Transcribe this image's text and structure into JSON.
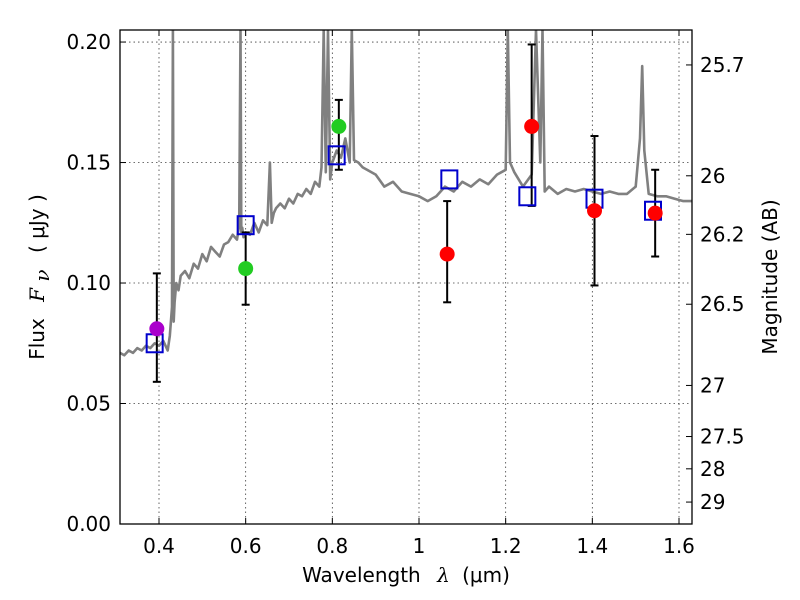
{
  "chart_data": {
    "type": "scatter",
    "title": "",
    "xlabel": "Wavelength",
    "xlabel_symbol": "λ",
    "xlabel_unit": "(μm)",
    "ylabel": "Flux",
    "ylabel_symbol": "F",
    "ylabel_subscript": "ν",
    "ylabel_unit": "( μJy )",
    "y2label": "Magnitude (AB)",
    "xlim": [
      0.31,
      1.63
    ],
    "ylim": [
      0.0,
      0.205
    ],
    "grid": true,
    "x_ticks": [
      {
        "value": 0.4,
        "label": "0.4"
      },
      {
        "value": 0.6,
        "label": "0.6"
      },
      {
        "value": 0.8,
        "label": "0.8"
      },
      {
        "value": 1.0,
        "label": "1"
      },
      {
        "value": 1.2,
        "label": "1.2"
      },
      {
        "value": 1.4,
        "label": "1.4"
      },
      {
        "value": 1.6,
        "label": "1.6"
      }
    ],
    "y_ticks": [
      {
        "value": 0.0,
        "label": "0.00"
      },
      {
        "value": 0.05,
        "label": "0.05"
      },
      {
        "value": 0.1,
        "label": "0.10"
      },
      {
        "value": 0.15,
        "label": "0.15"
      },
      {
        "value": 0.2,
        "label": "0.20"
      }
    ],
    "y2_ticks": [
      {
        "label": "25.7",
        "flux": 0.1905
      },
      {
        "label": "26",
        "flux": 0.1445
      },
      {
        "label": "26.2",
        "flux": 0.1202
      },
      {
        "label": "26.5",
        "flux": 0.0912
      },
      {
        "label": "27",
        "flux": 0.0575
      },
      {
        "label": "27.5",
        "flux": 0.0363
      },
      {
        "label": "28",
        "flux": 0.0229
      },
      {
        "label": "29",
        "flux": 0.0091
      }
    ],
    "series": [
      {
        "name": "model-sed",
        "kind": "line",
        "color": "#808080",
        "x": [
          0.31,
          0.32,
          0.33,
          0.34,
          0.35,
          0.36,
          0.37,
          0.38,
          0.39,
          0.4,
          0.41,
          0.42,
          0.425,
          0.43,
          0.432,
          0.434,
          0.436,
          0.44,
          0.445,
          0.45,
          0.46,
          0.47,
          0.48,
          0.49,
          0.5,
          0.51,
          0.52,
          0.53,
          0.54,
          0.55,
          0.56,
          0.57,
          0.58,
          0.585,
          0.588,
          0.59,
          0.592,
          0.595,
          0.6,
          0.61,
          0.62,
          0.63,
          0.64,
          0.65,
          0.656,
          0.66,
          0.665,
          0.67,
          0.68,
          0.69,
          0.7,
          0.71,
          0.72,
          0.73,
          0.74,
          0.75,
          0.76,
          0.77,
          0.775,
          0.78,
          0.785,
          0.79,
          0.795,
          0.8,
          0.81,
          0.82,
          0.83,
          0.84,
          0.845,
          0.85,
          0.86,
          0.87,
          0.88,
          0.9,
          0.92,
          0.94,
          0.96,
          0.98,
          1.0,
          1.02,
          1.04,
          1.06,
          1.08,
          1.1,
          1.12,
          1.14,
          1.16,
          1.18,
          1.2,
          1.205,
          1.21,
          1.215,
          1.22,
          1.24,
          1.26,
          1.27,
          1.28,
          1.285,
          1.29,
          1.3,
          1.32,
          1.34,
          1.36,
          1.38,
          1.4,
          1.42,
          1.44,
          1.46,
          1.48,
          1.5,
          1.51,
          1.515,
          1.52,
          1.53,
          1.55,
          1.57,
          1.59,
          1.61,
          1.63
        ],
        "y": [
          0.071,
          0.07,
          0.072,
          0.071,
          0.073,
          0.072,
          0.074,
          0.073,
          0.075,
          0.074,
          0.076,
          0.072,
          0.078,
          0.09,
          0.205,
          0.084,
          0.092,
          0.1,
          0.097,
          0.103,
          0.105,
          0.102,
          0.108,
          0.106,
          0.112,
          0.109,
          0.115,
          0.113,
          0.111,
          0.116,
          0.117,
          0.12,
          0.118,
          0.124,
          0.205,
          0.121,
          0.123,
          0.119,
          0.121,
          0.12,
          0.125,
          0.121,
          0.126,
          0.124,
          0.15,
          0.125,
          0.129,
          0.131,
          0.133,
          0.131,
          0.135,
          0.133,
          0.137,
          0.136,
          0.139,
          0.137,
          0.142,
          0.14,
          0.148,
          0.205,
          0.146,
          0.205,
          0.143,
          0.15,
          0.155,
          0.152,
          0.16,
          0.15,
          0.205,
          0.151,
          0.15,
          0.148,
          0.147,
          0.145,
          0.14,
          0.142,
          0.138,
          0.137,
          0.136,
          0.134,
          0.136,
          0.14,
          0.138,
          0.142,
          0.14,
          0.143,
          0.141,
          0.145,
          0.147,
          0.205,
          0.15,
          0.148,
          0.146,
          0.14,
          0.145,
          0.205,
          0.15,
          0.205,
          0.138,
          0.14,
          0.137,
          0.139,
          0.138,
          0.139,
          0.138,
          0.137,
          0.138,
          0.137,
          0.137,
          0.14,
          0.16,
          0.19,
          0.155,
          0.137,
          0.136,
          0.136,
          0.135,
          0.134,
          0.134
        ]
      },
      {
        "name": "model-bandpass-fluxes",
        "kind": "open-square",
        "color": "#0000cc",
        "x": [
          0.39,
          0.6,
          0.81,
          1.07,
          1.25,
          1.405,
          1.54
        ],
        "y": [
          0.075,
          0.124,
          0.153,
          0.143,
          0.136,
          0.135,
          0.13
        ]
      },
      {
        "name": "observed-photometry",
        "kind": "filled-circle",
        "x": [
          0.395,
          0.6,
          0.815,
          1.065,
          1.26,
          1.405,
          1.545
        ],
        "y": [
          0.081,
          0.106,
          0.165,
          0.112,
          0.165,
          0.13,
          0.129
        ],
        "yerr_low": [
          0.059,
          0.091,
          0.147,
          0.092,
          0.132,
          0.099,
          0.111
        ],
        "yerr_high": [
          0.104,
          0.121,
          0.176,
          0.134,
          0.199,
          0.161,
          0.147
        ],
        "colors": [
          "#aa00cc",
          "#22cc22",
          "#22cc22",
          "#ff0000",
          "#ff0000",
          "#ff0000",
          "#ff0000"
        ]
      }
    ]
  }
}
